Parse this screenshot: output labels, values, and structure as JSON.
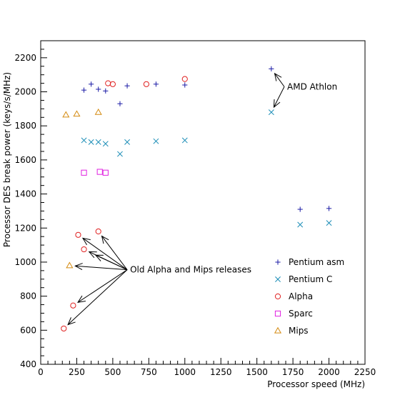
{
  "chart_data": {
    "type": "scatter",
    "title": "",
    "xlabel": "Processor speed (MHz)",
    "ylabel": "Processor DES break power (keys/s/MHz)",
    "xlim": [
      0,
      2250
    ],
    "ylim": [
      400,
      2300
    ],
    "x_ticks": [
      0,
      250,
      500,
      750,
      1000,
      1250,
      1500,
      1750,
      2000,
      2250
    ],
    "y_ticks": [
      400,
      600,
      800,
      1000,
      1200,
      1400,
      1600,
      1800,
      2000,
      2200
    ],
    "legend_position": "bottom-right",
    "series": [
      {
        "name": "Pentium asm",
        "marker": "plus",
        "color": "#1a1aa6",
        "points": [
          [
            300,
            2010
          ],
          [
            350,
            2045
          ],
          [
            400,
            2015
          ],
          [
            450,
            2005
          ],
          [
            550,
            1930
          ],
          [
            600,
            2035
          ],
          [
            800,
            2045
          ],
          [
            1000,
            2040
          ],
          [
            1600,
            2135
          ],
          [
            1800,
            1310
          ],
          [
            2000,
            1315
          ]
        ]
      },
      {
        "name": "Pentium C",
        "marker": "x",
        "color": "#1f8fb8",
        "points": [
          [
            300,
            1715
          ],
          [
            350,
            1705
          ],
          [
            400,
            1705
          ],
          [
            450,
            1695
          ],
          [
            550,
            1635
          ],
          [
            600,
            1705
          ],
          [
            800,
            1710
          ],
          [
            1000,
            1715
          ],
          [
            1600,
            1880
          ],
          [
            1800,
            1220
          ],
          [
            2000,
            1230
          ]
        ]
      },
      {
        "name": "Alpha",
        "marker": "circle",
        "color": "#e02020",
        "points": [
          [
            467,
            2050
          ],
          [
            500,
            2045
          ],
          [
            733,
            2045
          ],
          [
            1000,
            2075
          ],
          [
            260,
            1160
          ],
          [
            400,
            1180
          ],
          [
            300,
            1075
          ],
          [
            225,
            745
          ],
          [
            160,
            610
          ]
        ]
      },
      {
        "name": "Sparc",
        "marker": "square",
        "color": "#e020e0",
        "points": [
          [
            300,
            1525
          ],
          [
            410,
            1530
          ],
          [
            450,
            1525
          ]
        ]
      },
      {
        "name": "Mips",
        "marker": "triangle",
        "color": "#d48a10",
        "points": [
          [
            175,
            1865
          ],
          [
            250,
            1870
          ],
          [
            400,
            1880
          ],
          [
            200,
            980
          ]
        ]
      }
    ],
    "annotations": [
      {
        "text": "AMD Athlon",
        "anchor": [
          1690,
          2030
        ],
        "arrow_targets": [
          [
            1600,
            2135
          ],
          [
            1600,
            1880
          ]
        ]
      },
      {
        "text": "Old Alpha and Mips releases",
        "anchor": [
          600,
          955
        ],
        "arrow_targets": [
          [
            260,
            1160
          ],
          [
            400,
            1180
          ],
          [
            300,
            1075
          ],
          [
            345,
            1055
          ],
          [
            200,
            980
          ],
          [
            225,
            745
          ],
          [
            160,
            610
          ]
        ]
      }
    ]
  }
}
